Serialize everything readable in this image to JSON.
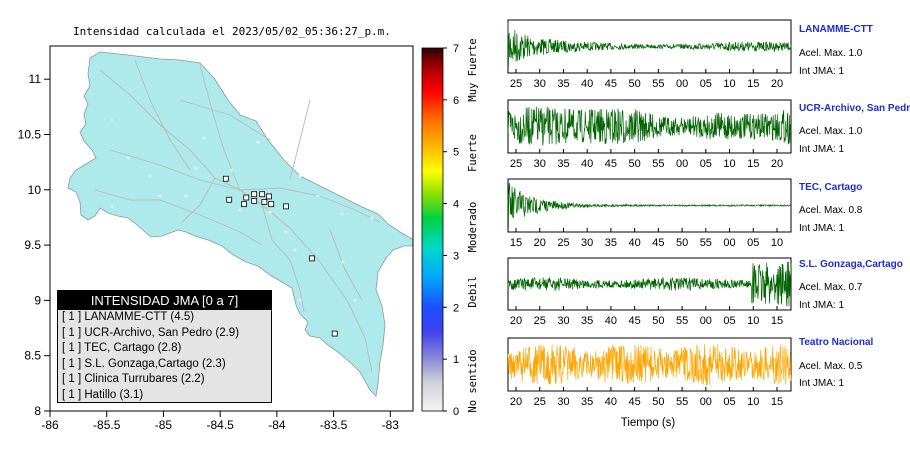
{
  "map_panel": {
    "title": "Intensidad calculada el 2023/05/02_05:36:27_p.m.",
    "lon_ticks": [
      "-86",
      "-85.5",
      "-85",
      "-84.5",
      "-84",
      "-83.5",
      "-83"
    ],
    "lat_ticks": [
      "11",
      "10.5",
      "10",
      "9.5",
      "9",
      "8.5",
      "8"
    ],
    "land_color": "#aeeaeb",
    "legend": {
      "title": "INTENSIDAD JMA [0 a 7]",
      "items": [
        "[ 1 ]  LANAMME-CTT (4.5)",
        "[ 1 ]  UCR-Archivo, San Pedro (2.9)",
        "[ 1 ]  TEC, Cartago (2.8)",
        "[ 1 ]  S.L. Gonzaga,Cartago (2.3)",
        "[ 1 ]  Clinica Turrubares (2.2)",
        "[ 1 ]  Hatillo (3.1)"
      ]
    }
  },
  "colorbar": {
    "ticks": [
      "0",
      "1",
      "2",
      "3",
      "4",
      "5",
      "6",
      "7"
    ],
    "labels": [
      "No sentido",
      "Debil",
      "Moderado",
      "Fuerte",
      "Muy Fuerte"
    ]
  },
  "chart_data": [
    {
      "type": "scatter",
      "title": "Intensidad calculada el 2023/05/02_05:36:27_p.m.",
      "xlim": [
        -86,
        -82.8
      ],
      "ylim": [
        8,
        11.3
      ],
      "x_ticks": [
        -86,
        -85.5,
        -85,
        -84.5,
        -84,
        -83.5,
        -83
      ],
      "y_ticks": [
        8,
        8.5,
        9,
        9.5,
        10,
        10.5,
        11
      ],
      "series": [
        {
          "points": [
            {
              "lon": -84.45,
              "lat": 10.1
            },
            {
              "lon": -84.42,
              "lat": 9.91
            },
            {
              "lon": -84.27,
              "lat": 9.93
            },
            {
              "lon": -84.2,
              "lat": 9.96
            },
            {
              "lon": -84.13,
              "lat": 9.96
            },
            {
              "lon": -84.07,
              "lat": 9.94
            },
            {
              "lon": -84.2,
              "lat": 9.9
            },
            {
              "lon": -84.11,
              "lat": 9.89
            },
            {
              "lon": -84.05,
              "lat": 9.87
            },
            {
              "lon": -84.29,
              "lat": 9.87
            },
            {
              "lon": -83.92,
              "lat": 9.85
            },
            {
              "lon": -83.69,
              "lat": 9.38
            },
            {
              "lon": -83.49,
              "lat": 8.7
            }
          ]
        }
      ]
    },
    {
      "type": "line",
      "xlabel": "Tiempo (s)",
      "series": [
        {
          "name": "LANAMME-CTT",
          "stat1": "Acel. Max. 1.0",
          "stat2": "Int JMA: 1",
          "color": "#006400",
          "ticks": [
            "25",
            "30",
            "35",
            "40",
            "45",
            "50",
            "55",
            "00",
            "05",
            "10",
            "15",
            "20"
          ]
        },
        {
          "name": "UCR-Archivo, San Pedro",
          "stat1": "Acel. Max. 1.0",
          "stat2": "Int JMA: 1",
          "color": "#006400",
          "ticks": [
            "25",
            "30",
            "35",
            "40",
            "45",
            "50",
            "55",
            "00",
            "05",
            "10",
            "15",
            "20"
          ]
        },
        {
          "name": "TEC, Cartago",
          "stat1": "Acel. Max. 0.8",
          "stat2": "Int JMA: 1",
          "color": "#006400",
          "ticks": [
            "15",
            "20",
            "25",
            "30",
            "35",
            "40",
            "45",
            "50",
            "55",
            "00",
            "05",
            "10"
          ]
        },
        {
          "name": "S.L. Gonzaga,Cartago",
          "stat1": "Acel. Max. 0.7",
          "stat2": "Int JMA: 1",
          "color": "#006400",
          "ticks": [
            "20",
            "25",
            "30",
            "35",
            "40",
            "45",
            "50",
            "55",
            "00",
            "05",
            "10",
            "15"
          ]
        },
        {
          "name": "Teatro Nacional",
          "stat1": "Acel. Max. 0.5",
          "stat2": "Int JMA: 1",
          "color": "#ffa500",
          "ticks": [
            "20",
            "25",
            "30",
            "35",
            "40",
            "45",
            "50",
            "55",
            "00",
            "05",
            "10",
            "15"
          ]
        }
      ]
    }
  ]
}
